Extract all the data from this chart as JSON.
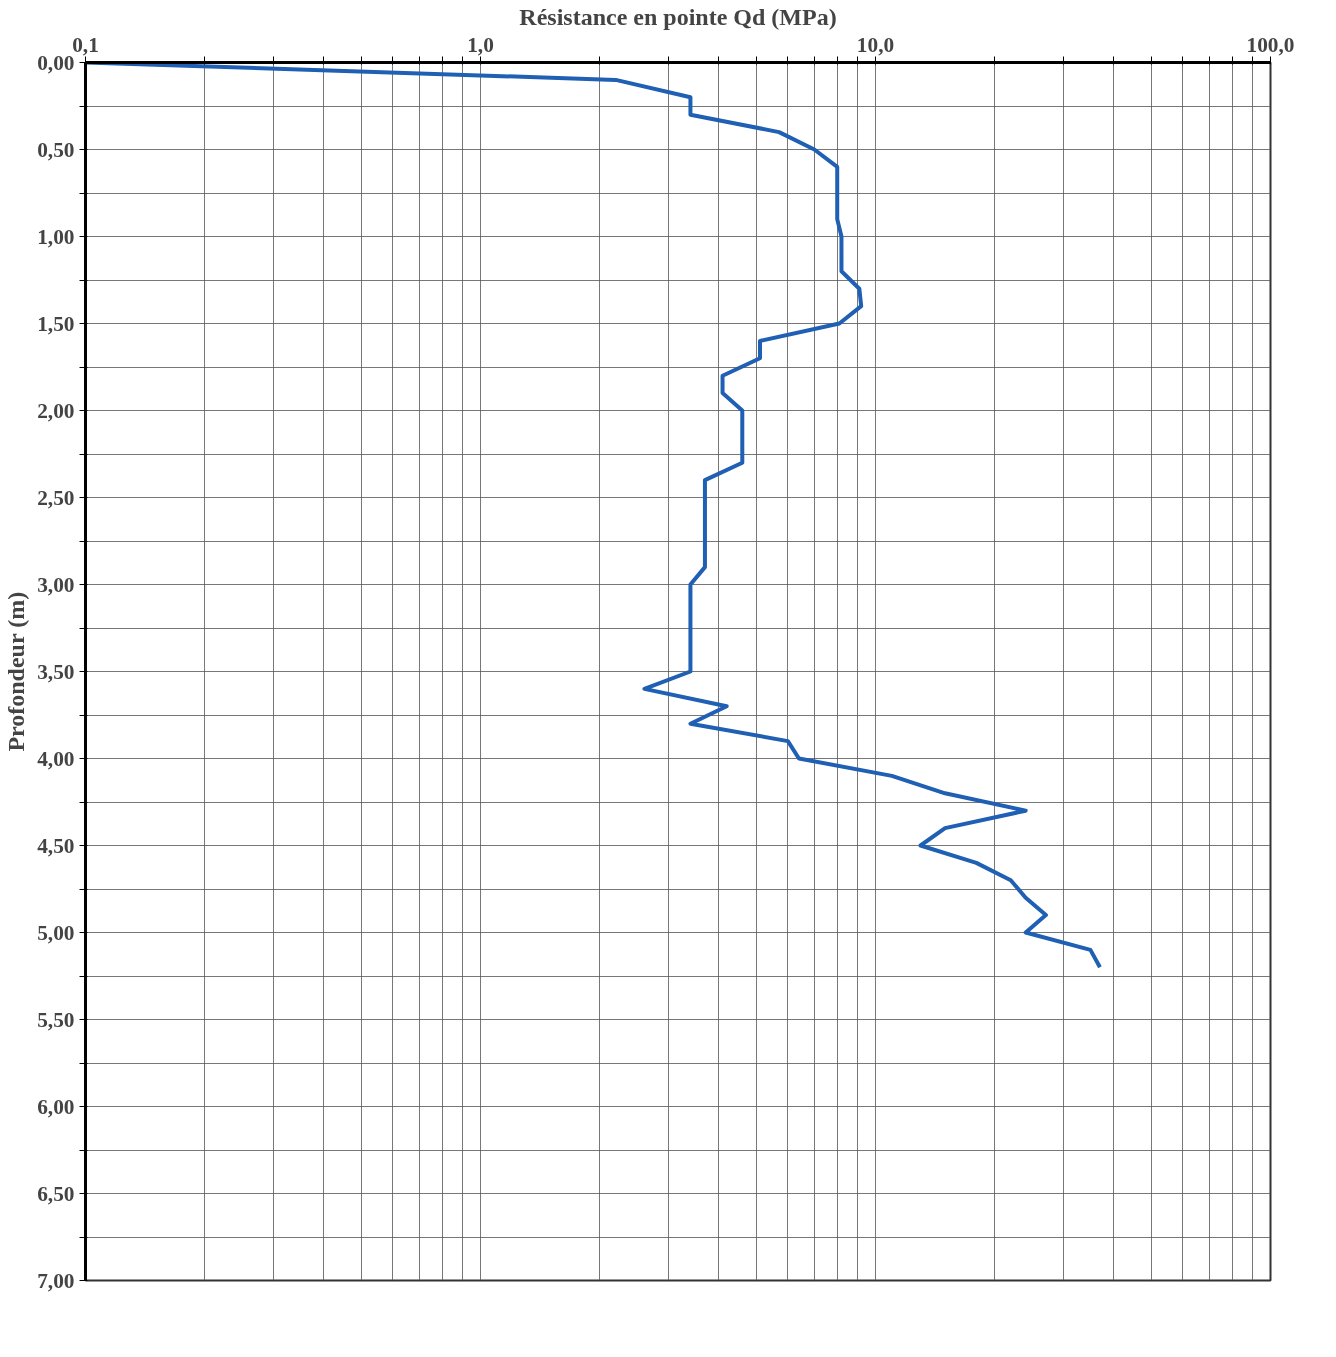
{
  "chart_data": {
    "type": "line",
    "xlabel": "Résistance en pointe Qd (MPa)",
    "ylabel": "Profondeur (m)",
    "log": "x",
    "grid": true,
    "marker": "none",
    "line_style": "solid",
    "xlim": [
      0.1,
      100
    ],
    "ylim": [
      7,
      0
    ],
    "xticks": [
      {
        "value": 0.1,
        "label": "0,1"
      },
      {
        "value": 0.2,
        "label": null
      },
      {
        "value": 0.3,
        "label": null
      },
      {
        "value": 0.4,
        "label": null
      },
      {
        "value": 0.5,
        "label": null
      },
      {
        "value": 0.6,
        "label": null
      },
      {
        "value": 0.7,
        "label": null
      },
      {
        "value": 0.8,
        "label": null
      },
      {
        "value": 0.9,
        "label": null
      },
      {
        "value": 1,
        "label": "1,0"
      },
      {
        "value": 2,
        "label": null
      },
      {
        "value": 3,
        "label": null
      },
      {
        "value": 4,
        "label": null
      },
      {
        "value": 5,
        "label": null
      },
      {
        "value": 6,
        "label": null
      },
      {
        "value": 7,
        "label": null
      },
      {
        "value": 8,
        "label": null
      },
      {
        "value": 9,
        "label": null
      },
      {
        "value": 10,
        "label": "10,0"
      },
      {
        "value": 20,
        "label": null
      },
      {
        "value": 30,
        "label": null
      },
      {
        "value": 40,
        "label": null
      },
      {
        "value": 50,
        "label": null
      },
      {
        "value": 60,
        "label": null
      },
      {
        "value": 70,
        "label": null
      },
      {
        "value": 80,
        "label": null
      },
      {
        "value": 90,
        "label": null
      },
      {
        "value": 100,
        "label": "100,0"
      }
    ],
    "yticks": [
      {
        "value": 0,
        "label": "0,00"
      },
      {
        "value": 0.25,
        "label": null
      },
      {
        "value": 0.5,
        "label": "0,50"
      },
      {
        "value": 0.75,
        "label": null
      },
      {
        "value": 1,
        "label": "1,00"
      },
      {
        "value": 1.25,
        "label": null
      },
      {
        "value": 1.5,
        "label": "1,50"
      },
      {
        "value": 1.75,
        "label": null
      },
      {
        "value": 2,
        "label": "2,00"
      },
      {
        "value": 2.25,
        "label": null
      },
      {
        "value": 2.5,
        "label": "2,50"
      },
      {
        "value": 2.75,
        "label": null
      },
      {
        "value": 3,
        "label": "3,00"
      },
      {
        "value": 3.25,
        "label": null
      },
      {
        "value": 3.5,
        "label": "3,50"
      },
      {
        "value": 3.75,
        "label": null
      },
      {
        "value": 4,
        "label": "4,00"
      },
      {
        "value": 4.25,
        "label": null
      },
      {
        "value": 4.5,
        "label": "4,50"
      },
      {
        "value": 4.75,
        "label": null
      },
      {
        "value": 5,
        "label": "5,00"
      },
      {
        "value": 5.25,
        "label": null
      },
      {
        "value": 5.5,
        "label": "5,50"
      },
      {
        "value": 5.75,
        "label": null
      },
      {
        "value": 6,
        "label": "6,00"
      },
      {
        "value": 6.25,
        "label": null
      },
      {
        "value": 6.5,
        "label": "6,50"
      },
      {
        "value": 6.75,
        "label": null
      },
      {
        "value": 7,
        "label": "7,00"
      }
    ],
    "series": [
      {
        "color": "#1f5fb4",
        "x": [
          0.1,
          2.2,
          3.4,
          3.4,
          5.7,
          7.0,
          8.0,
          8.0,
          8.2,
          8.2,
          9.1,
          9.2,
          8.1,
          5.1,
          5.1,
          4.1,
          4.1,
          4.6,
          4.6,
          3.7,
          3.7,
          3.4,
          3.4,
          2.6,
          4.2,
          3.4,
          6.0,
          6.4,
          11,
          15,
          24,
          15,
          13,
          18,
          22,
          24,
          27,
          24,
          35,
          37
        ],
        "values": [
          0,
          0.1,
          0.2,
          0.3,
          0.4,
          0.5,
          0.6,
          0.9,
          1.0,
          1.2,
          1.3,
          1.4,
          1.5,
          1.6,
          1.7,
          1.8,
          1.9,
          2.0,
          2.3,
          2.4,
          2.9,
          3.0,
          3.5,
          3.6,
          3.7,
          3.8,
          3.9,
          4.0,
          4.1,
          4.2,
          4.3,
          4.4,
          4.5,
          4.6,
          4.7,
          4.8,
          4.9,
          5.0,
          5.1,
          5.2
        ]
      }
    ]
  }
}
